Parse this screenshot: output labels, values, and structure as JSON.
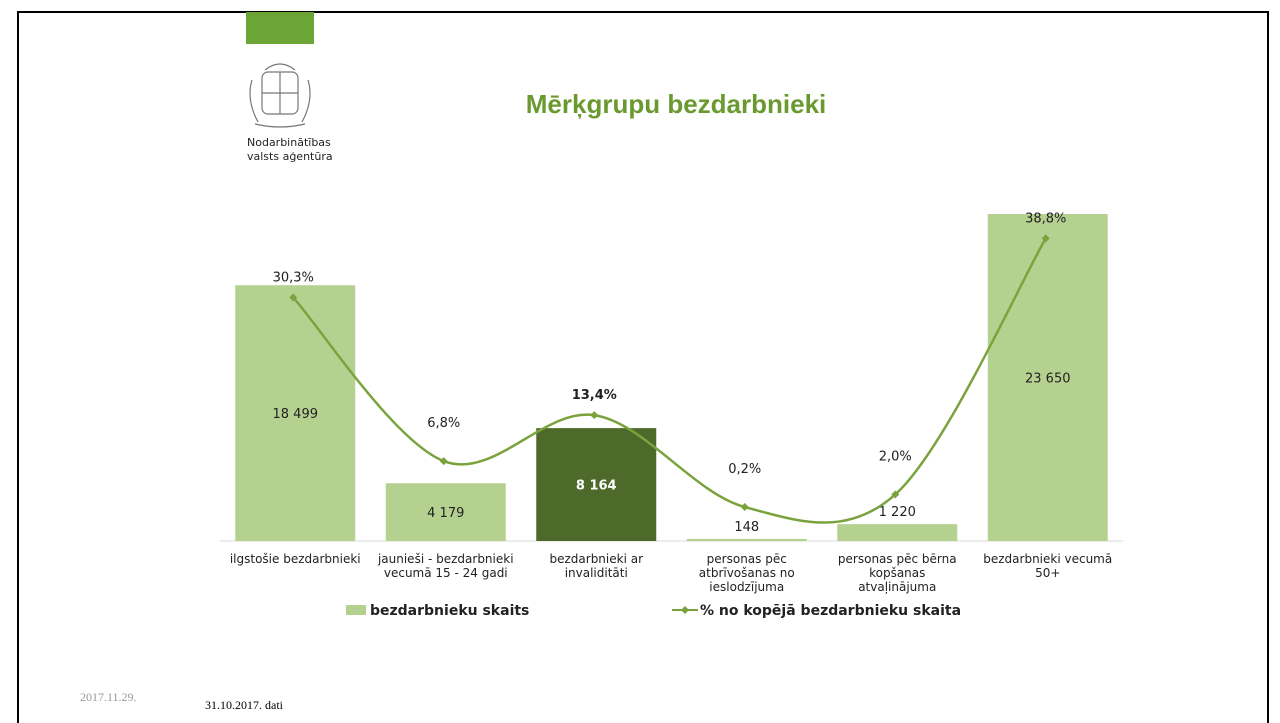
{
  "header": {
    "logo_text": [
      "Nodarbinātības",
      "valsts aģentūra"
    ]
  },
  "chart_data": {
    "type": "bar-line",
    "title": "Mērķgrupu bezdarbnieki",
    "categories": [
      [
        "ilgstošie bezdarbnieki"
      ],
      [
        "jaunieši - bezdarbnieki",
        "vecumā 15 - 24 gadi"
      ],
      [
        "bezdarbnieki ar",
        "invaliditāti"
      ],
      [
        "personas pēc",
        "atbrīvošanas no",
        "ieslodzījuma"
      ],
      [
        "personas pēc bērna",
        "kopšanas",
        "atvaļinājuma"
      ],
      [
        "bezdarbnieki vecumā",
        "50+"
      ]
    ],
    "series": [
      {
        "name": "bezdarbnieku skaits",
        "color": "#b5d190",
        "colors": [
          "#b5d190",
          "#b5d190",
          "#4e6a2a",
          "#b5d190",
          "#b5d190",
          "#b5d190"
        ],
        "values": [
          18499,
          4179,
          8164,
          148,
          1220,
          23650
        ],
        "value_labels": [
          "18 499",
          "4 179",
          "8 164",
          "148",
          "1 220",
          "23 650"
        ]
      },
      {
        "name": "% no kopējā bezdarbnieku skaita",
        "color": "#7aa33e",
        "axis": "y2",
        "values": [
          30.3,
          6.8,
          13.4,
          0.2,
          2.0,
          38.8
        ],
        "value_labels": [
          "30,3%",
          "6,8%",
          "13,4%",
          "0,2%",
          "2,0%",
          "38,8%"
        ]
      }
    ]
  },
  "footer": {
    "date": "2017.11.29.",
    "note": "31.10.2017. dati"
  }
}
